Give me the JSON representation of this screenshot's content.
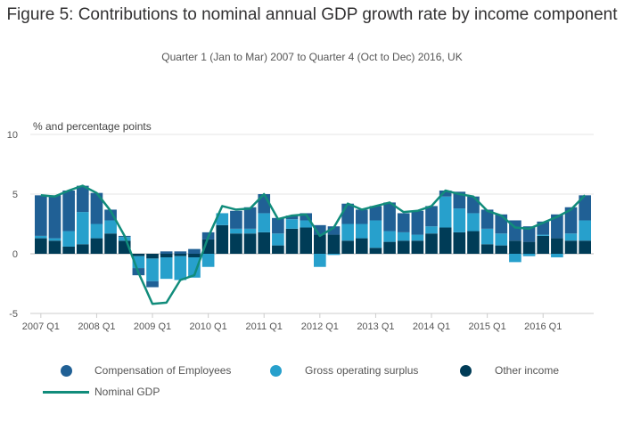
{
  "title": "Figure 5: Contributions to nominal annual GDP growth rate by income component",
  "subtitle": "Quarter 1 (Jan to Mar) 2007 to Quarter 4 (Oct to Dec) 2016, UK",
  "colors": {
    "compensation": "#206095",
    "gos": "#27a0cc",
    "other": "#003c57",
    "gdp": "#118c7b"
  },
  "chart_data": {
    "type": "bar",
    "stacked": true,
    "title": "Figure 5: Contributions to nominal annual GDP growth rate by income component",
    "subtitle": "Quarter 1 (Jan to Mar) 2007 to Quarter 4 (Oct to Dec) 2016, UK",
    "ylabel": "% and percentage points",
    "xlabel": "",
    "ylim": [
      -5,
      10
    ],
    "yticks": [
      -5,
      0,
      5,
      10
    ],
    "grid": true,
    "legend_position": "bottom",
    "xtick_labels": [
      "2007 Q1",
      "2008 Q1",
      "2009 Q1",
      "2010 Q1",
      "2011 Q1",
      "2012 Q1",
      "2013 Q1",
      "2014 Q1",
      "2015 Q1",
      "2016 Q1"
    ],
    "categories": [
      "2007 Q1",
      "2007 Q2",
      "2007 Q3",
      "2007 Q4",
      "2008 Q1",
      "2008 Q2",
      "2008 Q3",
      "2008 Q4",
      "2009 Q1",
      "2009 Q2",
      "2009 Q3",
      "2009 Q4",
      "2010 Q1",
      "2010 Q2",
      "2010 Q3",
      "2010 Q4",
      "2011 Q1",
      "2011 Q2",
      "2011 Q3",
      "2011 Q4",
      "2012 Q1",
      "2012 Q2",
      "2012 Q3",
      "2012 Q4",
      "2013 Q1",
      "2013 Q2",
      "2013 Q3",
      "2013 Q4",
      "2014 Q1",
      "2014 Q2",
      "2014 Q3",
      "2014 Q4",
      "2015 Q1",
      "2015 Q2",
      "2015 Q3",
      "2015 Q4",
      "2016 Q1",
      "2016 Q2",
      "2016 Q3",
      "2016 Q4"
    ],
    "series": [
      {
        "name": "Other income",
        "type": "bar",
        "values": [
          1.3,
          1.1,
          0.6,
          0.8,
          1.3,
          1.7,
          1.1,
          -0.2,
          -0.4,
          -0.3,
          -0.2,
          -0.3,
          1.2,
          2.4,
          1.7,
          1.7,
          1.8,
          0.7,
          2.1,
          2.2,
          1.6,
          1.6,
          1.1,
          1.3,
          0.5,
          1.0,
          1.1,
          1.1,
          1.7,
          2.2,
          1.8,
          1.9,
          0.8,
          0.7,
          1.1,
          1.0,
          1.5,
          1.3,
          1.1,
          1.1
        ]
      },
      {
        "name": "Gross operating surplus",
        "type": "bar",
        "values": [
          0.2,
          0.2,
          1.3,
          2.7,
          1.2,
          1.1,
          0.3,
          -1.0,
          -1.9,
          -1.8,
          -2.0,
          -1.7,
          -1.1,
          1.0,
          0.4,
          0.4,
          1.6,
          1.0,
          0.8,
          0.6,
          -1.1,
          -0.1,
          1.4,
          1.2,
          2.3,
          0.9,
          0.7,
          0.5,
          0.6,
          2.6,
          2.0,
          1.5,
          1.3,
          1.0,
          -0.7,
          -0.2,
          0.1,
          -0.3,
          0.6,
          1.7
        ]
      },
      {
        "name": "Compensation of Employees",
        "type": "bar",
        "values": [
          3.4,
          3.6,
          3.4,
          2.2,
          2.6,
          0.9,
          0.1,
          -0.6,
          -0.5,
          0.2,
          0.2,
          0.4,
          0.6,
          0.0,
          1.5,
          1.8,
          1.6,
          1.3,
          0.3,
          0.6,
          0.8,
          0.7,
          1.7,
          1.2,
          1.2,
          2.4,
          1.6,
          2.0,
          1.7,
          0.5,
          1.4,
          1.4,
          1.6,
          1.6,
          1.7,
          1.3,
          1.1,
          2.0,
          2.2,
          2.1
        ]
      },
      {
        "name": "Nominal GDP",
        "type": "line",
        "values": [
          4.9,
          4.8,
          5.3,
          5.7,
          5.1,
          3.6,
          1.5,
          -1.6,
          -4.2,
          -4.1,
          -2.2,
          -1.8,
          1.4,
          4.0,
          3.7,
          3.8,
          5.0,
          2.9,
          3.2,
          3.3,
          1.5,
          2.2,
          4.2,
          3.7,
          4.0,
          4.3,
          3.5,
          3.6,
          4.0,
          5.3,
          5.0,
          4.8,
          3.6,
          3.2,
          2.2,
          2.1,
          2.6,
          3.1,
          3.7,
          4.9
        ]
      }
    ]
  },
  "legend": [
    {
      "label": "Compensation of Employees",
      "key": "compensation"
    },
    {
      "label": "Gross operating surplus",
      "key": "gos"
    },
    {
      "label": "Other income",
      "key": "other"
    },
    {
      "label": "Nominal GDP",
      "key": "gdp"
    }
  ]
}
